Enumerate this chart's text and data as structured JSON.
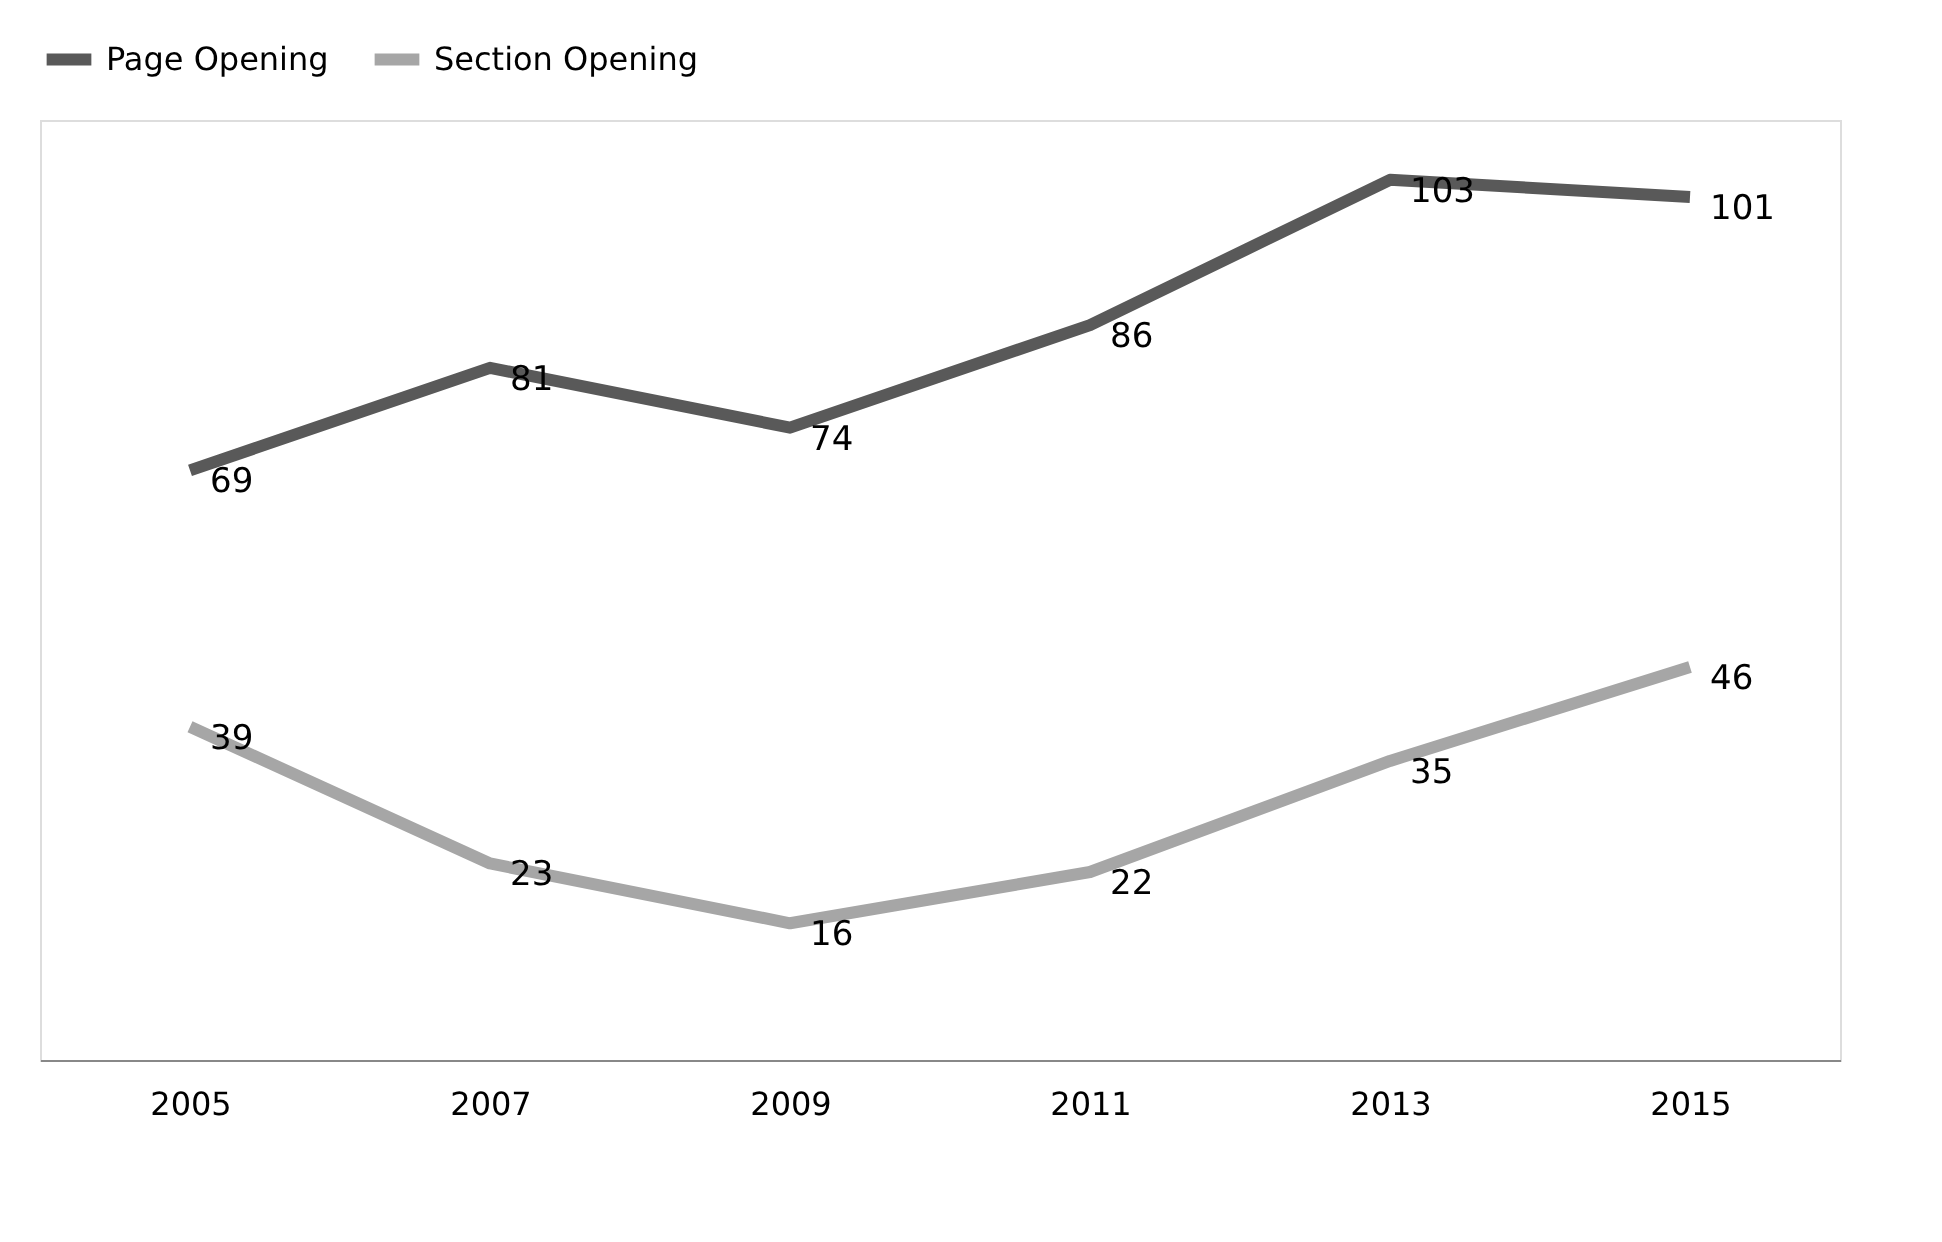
{
  "chart_data": {
    "type": "line",
    "categories": [
      "2005",
      "2007",
      "2009",
      "2011",
      "2013",
      "2015"
    ],
    "series": [
      {
        "name": "Page Opening",
        "color": "#595959",
        "values": [
          69,
          81,
          74,
          86,
          103,
          101
        ]
      },
      {
        "name": "Section Opening",
        "color": "#a6a6a6",
        "values": [
          39,
          23,
          16,
          22,
          35,
          46
        ]
      }
    ],
    "data_labels": true,
    "legend": "top",
    "grid": false,
    "marker": "none",
    "line_style": "solid"
  }
}
